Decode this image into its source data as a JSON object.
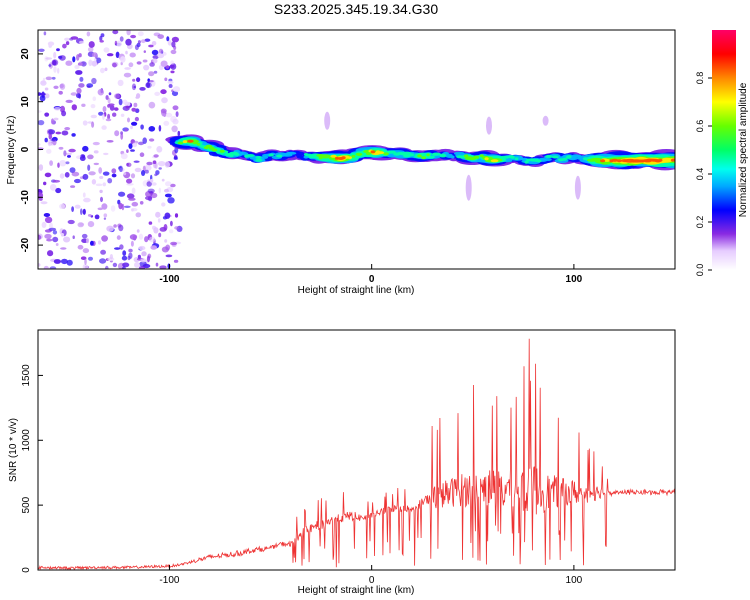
{
  "chart_data": [
    {
      "type": "heatmap",
      "title": "S233.2025.345.19.34.G30",
      "xlabel": "Height of straight line (km)",
      "ylabel": "Frequency (Hz)",
      "xlim": [
        -165,
        150
      ],
      "ylim": [
        -25,
        25
      ],
      "xticks": [
        {
          "value": -100,
          "label": "-100"
        },
        {
          "value": 0,
          "label": "0"
        },
        {
          "value": 100,
          "label": "100"
        }
      ],
      "yticks": [
        {
          "value": -20,
          "label": "-20"
        },
        {
          "value": -10,
          "label": "-10"
        },
        {
          "value": 0,
          "label": "0"
        },
        {
          "value": 10,
          "label": "10"
        },
        {
          "value": 20,
          "label": "20"
        }
      ],
      "ridge": [
        {
          "x": -95,
          "f": 1.5,
          "amp": 0.45
        },
        {
          "x": -90,
          "f": 1.8,
          "amp": 0.7
        },
        {
          "x": -85,
          "f": 0.8,
          "amp": 0.4
        },
        {
          "x": -80,
          "f": 0.5,
          "amp": 0.55
        },
        {
          "x": -75,
          "f": -0.5,
          "amp": 0.45
        },
        {
          "x": -70,
          "f": -1.0,
          "amp": 0.5
        },
        {
          "x": -65,
          "f": -0.8,
          "amp": 0.35
        },
        {
          "x": -60,
          "f": -1.5,
          "amp": 0.4
        },
        {
          "x": -55,
          "f": -2.0,
          "amp": 0.45
        },
        {
          "x": -50,
          "f": -1.0,
          "amp": 0.35
        },
        {
          "x": -45,
          "f": -1.5,
          "amp": 0.4
        },
        {
          "x": -40,
          "f": -1.0,
          "amp": 0.35
        },
        {
          "x": -35,
          "f": -1.2,
          "amp": 0.3
        },
        {
          "x": -30,
          "f": -1.5,
          "amp": 0.45
        },
        {
          "x": -25,
          "f": -1.5,
          "amp": 0.55
        },
        {
          "x": -20,
          "f": -1.6,
          "amp": 0.6
        },
        {
          "x": -15,
          "f": -1.8,
          "amp": 0.75
        },
        {
          "x": -10,
          "f": -1.5,
          "amp": 0.55
        },
        {
          "x": -5,
          "f": -0.8,
          "amp": 0.5
        },
        {
          "x": 0,
          "f": -0.5,
          "amp": 0.7
        },
        {
          "x": 5,
          "f": -0.8,
          "amp": 0.6
        },
        {
          "x": 10,
          "f": -0.8,
          "amp": 0.45
        },
        {
          "x": 15,
          "f": -1.0,
          "amp": 0.5
        },
        {
          "x": 20,
          "f": -1.2,
          "amp": 0.45
        },
        {
          "x": 25,
          "f": -1.5,
          "amp": 0.55
        },
        {
          "x": 30,
          "f": -1.2,
          "amp": 0.45
        },
        {
          "x": 35,
          "f": -1.0,
          "amp": 0.4
        },
        {
          "x": 40,
          "f": -1.5,
          "amp": 0.35
        },
        {
          "x": 45,
          "f": -1.2,
          "amp": 0.45
        },
        {
          "x": 50,
          "f": -2.0,
          "amp": 0.55
        },
        {
          "x": 55,
          "f": -1.5,
          "amp": 0.5
        },
        {
          "x": 60,
          "f": -2.2,
          "amp": 0.7
        },
        {
          "x": 65,
          "f": -2.0,
          "amp": 0.45
        },
        {
          "x": 70,
          "f": -1.8,
          "amp": 0.4
        },
        {
          "x": 75,
          "f": -2.2,
          "amp": 0.35
        },
        {
          "x": 80,
          "f": -2.5,
          "amp": 0.45
        },
        {
          "x": 85,
          "f": -2.0,
          "amp": 0.35
        },
        {
          "x": 90,
          "f": -1.5,
          "amp": 0.4
        },
        {
          "x": 95,
          "f": -2.0,
          "amp": 0.45
        },
        {
          "x": 100,
          "f": -1.5,
          "amp": 0.4
        },
        {
          "x": 105,
          "f": -2.0,
          "amp": 0.35
        },
        {
          "x": 110,
          "f": -2.2,
          "amp": 0.6
        },
        {
          "x": 115,
          "f": -2.3,
          "amp": 0.7
        },
        {
          "x": 120,
          "f": -2.3,
          "amp": 0.75
        },
        {
          "x": 125,
          "f": -2.3,
          "amp": 0.8
        },
        {
          "x": 130,
          "f": -2.3,
          "amp": 0.8
        },
        {
          "x": 135,
          "f": -2.3,
          "amp": 0.8
        },
        {
          "x": 140,
          "f": -2.3,
          "amp": 0.8
        },
        {
          "x": 145,
          "f": -2.3,
          "amp": 0.8
        },
        {
          "x": 150,
          "f": -2.3,
          "amp": 0.8
        }
      ],
      "noise_region": {
        "x_from": -165,
        "x_to": -95,
        "amp": 0.15
      }
    },
    {
      "type": "colorbar",
      "label": "Normalized spectral amplitude",
      "range": [
        0,
        1
      ],
      "ticks": [
        {
          "value": 0.0,
          "label": "0.0"
        },
        {
          "value": 0.2,
          "label": "0.2"
        },
        {
          "value": 0.4,
          "label": "0.4"
        },
        {
          "value": 0.6,
          "label": "0.6"
        },
        {
          "value": 0.8,
          "label": "0.8"
        }
      ],
      "stops": [
        {
          "value": 0.0,
          "color": "#ffffff"
        },
        {
          "value": 0.08,
          "color": "#e6ccff"
        },
        {
          "value": 0.15,
          "color": "#8a2be2"
        },
        {
          "value": 0.25,
          "color": "#0000ff"
        },
        {
          "value": 0.35,
          "color": "#00aaff"
        },
        {
          "value": 0.42,
          "color": "#00ffee"
        },
        {
          "value": 0.5,
          "color": "#00ff66"
        },
        {
          "value": 0.6,
          "color": "#66ff00"
        },
        {
          "value": 0.7,
          "color": "#ffff00"
        },
        {
          "value": 0.8,
          "color": "#ff8800"
        },
        {
          "value": 0.9,
          "color": "#ff0000"
        },
        {
          "value": 1.0,
          "color": "#ff0066"
        }
      ]
    },
    {
      "type": "line",
      "title": "",
      "xlabel": "Height of straight line (km)",
      "ylabel": "SNR (10 * v/v)",
      "xlim": [
        -165,
        150
      ],
      "ylim": [
        0,
        1850
      ],
      "xticks": [
        {
          "value": -100,
          "label": "-100"
        },
        {
          "value": 0,
          "label": "0"
        },
        {
          "value": 100,
          "label": "100"
        }
      ],
      "yticks": [
        {
          "value": 0,
          "label": "0"
        },
        {
          "value": 500,
          "label": "500"
        },
        {
          "value": 1000,
          "label": "1000"
        },
        {
          "value": 1500,
          "label": "1500"
        }
      ],
      "color": "#ee3333",
      "series": [
        {
          "name": "SNR",
          "x": [
            -165,
            -150,
            -135,
            -120,
            -110,
            -100,
            -95,
            -90,
            -85,
            -80,
            -75,
            -70,
            -65,
            -60,
            -55,
            -50,
            -45,
            -40,
            -35,
            -30,
            -25,
            -20,
            -15,
            -10,
            -5,
            0,
            5,
            10,
            15,
            20,
            25,
            30,
            35,
            40,
            45,
            50,
            55,
            60,
            65,
            70,
            75,
            80,
            85,
            90,
            95,
            100,
            105,
            110,
            115,
            120,
            125,
            130,
            135,
            140,
            145,
            150
          ],
          "envelope": [
            30,
            25,
            30,
            35,
            40,
            50,
            70,
            120,
            180,
            200,
            220,
            240,
            260,
            260,
            280,
            250,
            300,
            310,
            480,
            500,
            600,
            580,
            600,
            640,
            550,
            520,
            600,
            620,
            680,
            560,
            750,
            1150,
            1200,
            1250,
            1350,
            1450,
            1500,
            1500,
            1550,
            1500,
            1700,
            1850,
            1500,
            1350,
            1200,
            1150,
            1050,
            1000,
            800,
            620,
            620,
            610,
            610,
            610,
            610,
            610
          ],
          "baseline": [
            20,
            15,
            20,
            20,
            25,
            30,
            40,
            60,
            80,
            100,
            110,
            120,
            130,
            150,
            160,
            170,
            200,
            200,
            280,
            320,
            350,
            380,
            400,
            420,
            400,
            420,
            450,
            470,
            480,
            470,
            520,
            560,
            580,
            600,
            620,
            620,
            630,
            640,
            620,
            620,
            620,
            620,
            600,
            600,
            600,
            600,
            590,
            600,
            600,
            600,
            600,
            600,
            600,
            600,
            600,
            600
          ]
        }
      ]
    }
  ]
}
